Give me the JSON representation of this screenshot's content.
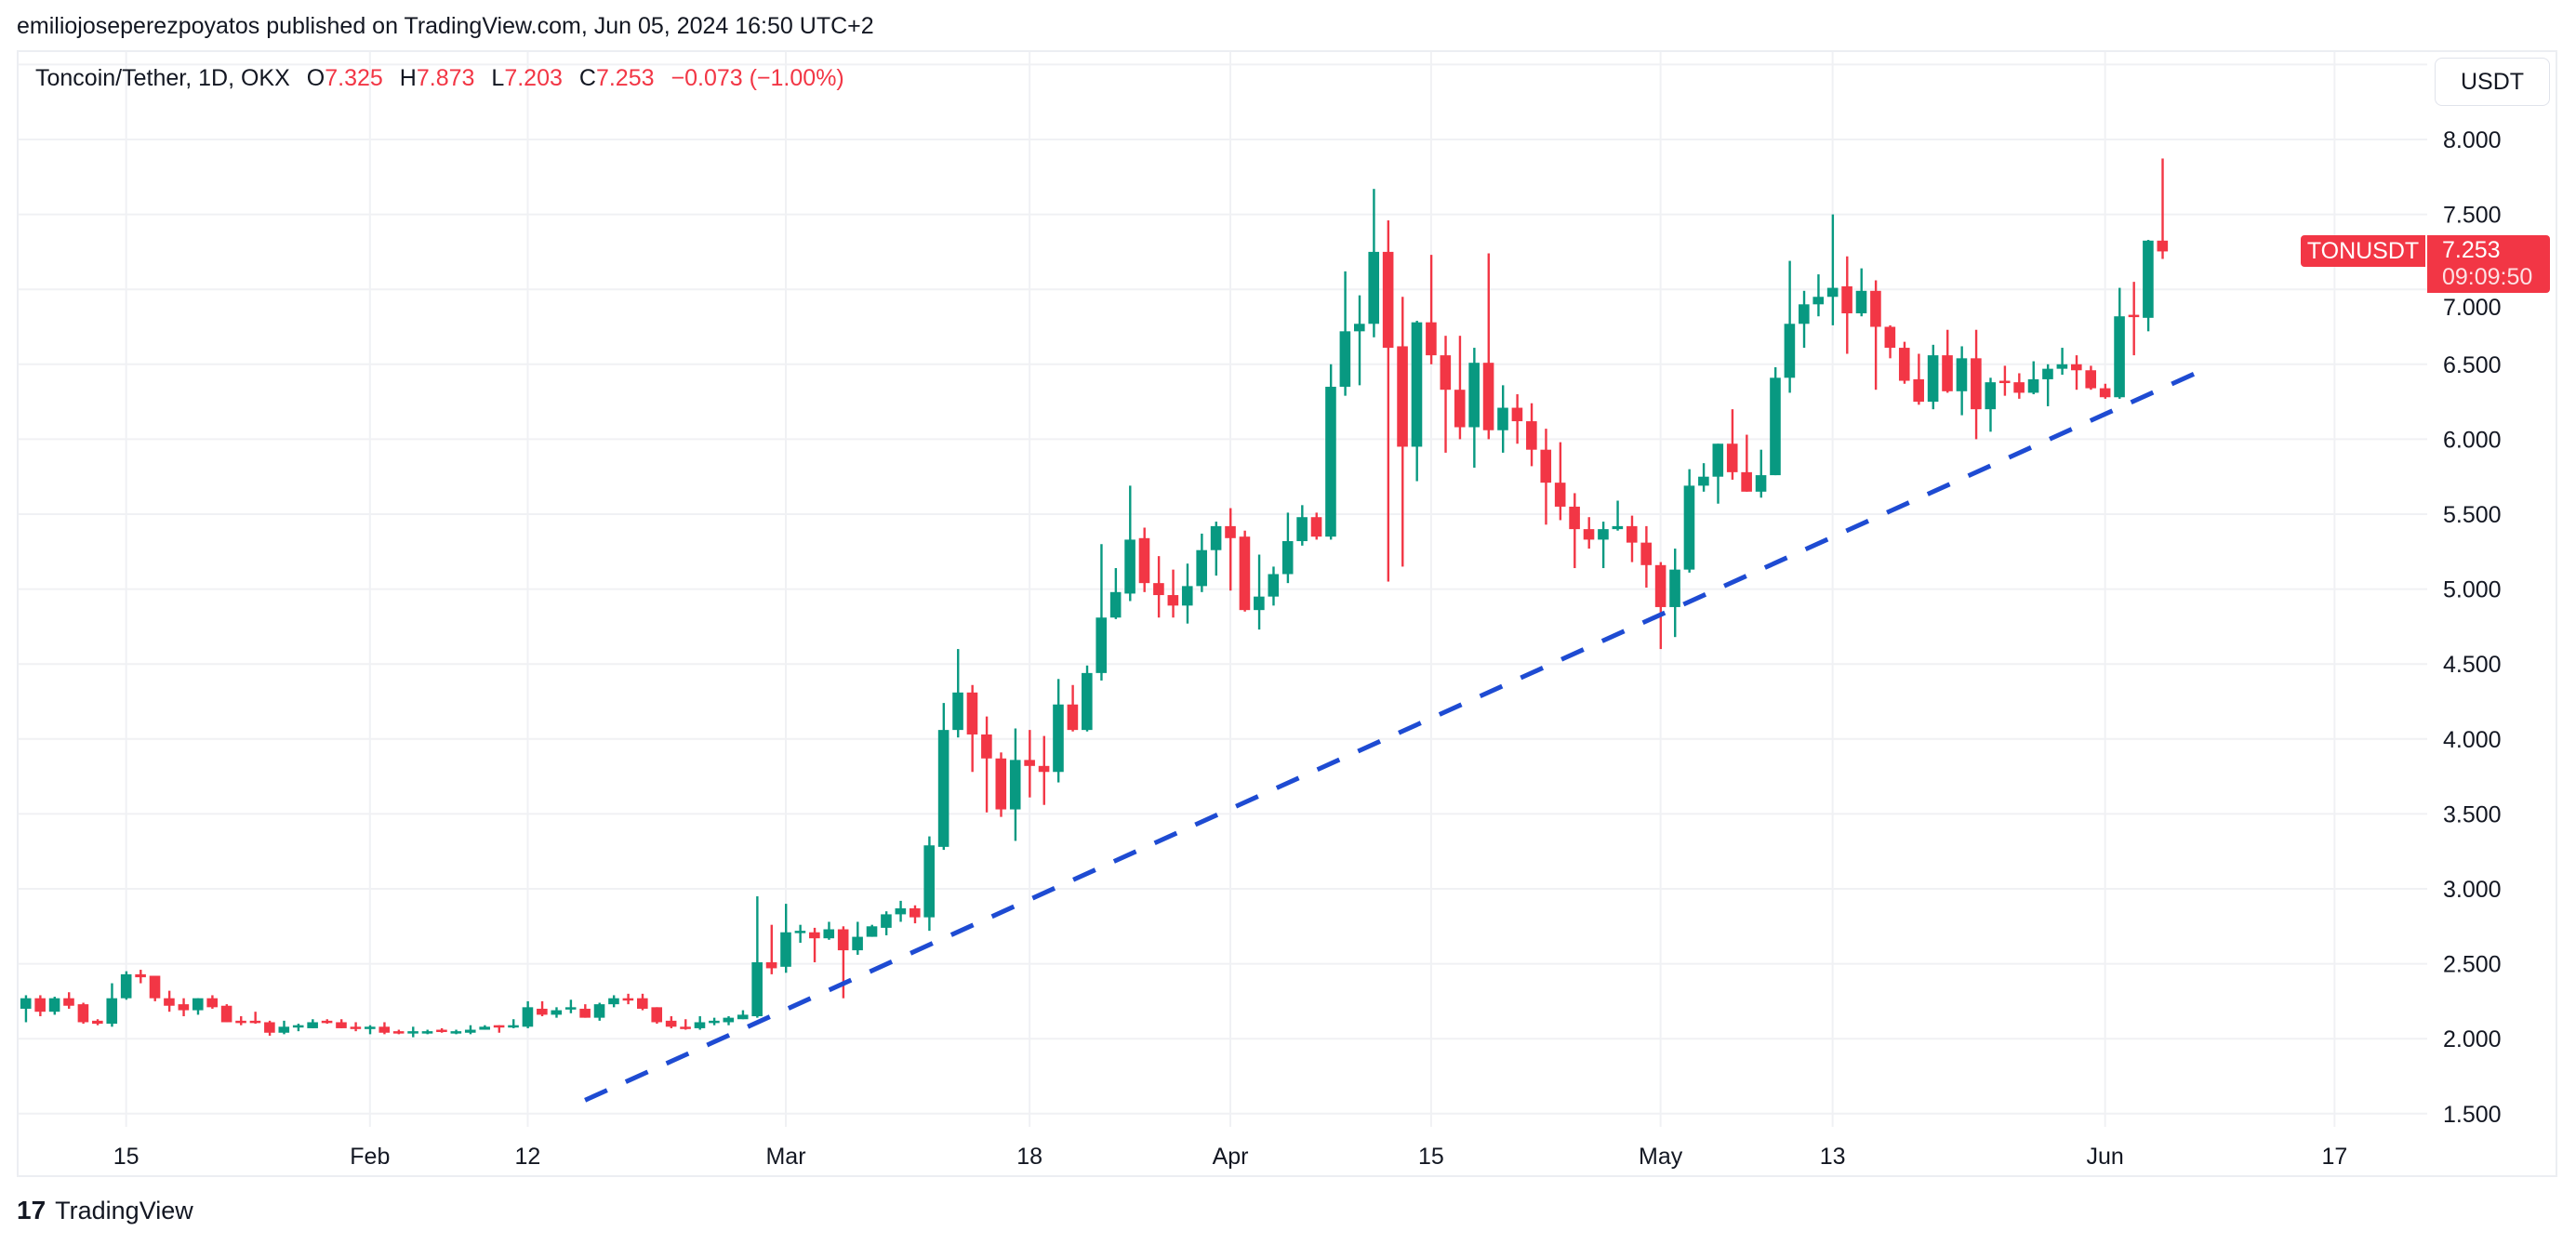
{
  "header": {
    "published": "emiliojoseperezpoyatos published on TradingView.com, Jun 05, 2024 16:50 UTC+2"
  },
  "legend": {
    "symbol": "Toncoin/Tether, 1D, OKX",
    "o_label": "O",
    "o": "7.325",
    "h_label": "H",
    "h": "7.873",
    "l_label": "L",
    "l": "7.203",
    "c_label": "C",
    "c": "7.253",
    "change": "−0.073 (−1.00%)"
  },
  "currency_button": "USDT",
  "last_price": {
    "symbol": "TONUSDT",
    "price": "7.253",
    "countdown": "09:09:50"
  },
  "footer": {
    "brand": "TradingView",
    "logo_text": "17"
  },
  "colors": {
    "up": "#089981",
    "down": "#F23645",
    "trendline": "#1E4BD2",
    "grid": "#f0f1f4"
  },
  "chart_data": {
    "type": "candlestick",
    "title": "Toncoin/Tether, 1D, OKX",
    "first_date": "2024-01-08",
    "ylim": [
      1.35,
      8.6
    ],
    "grid": true,
    "y_ticks": [
      "8.000",
      "7.500",
      "7.000",
      "6.500",
      "6.000",
      "5.500",
      "5.000",
      "4.500",
      "4.000",
      "3.500",
      "3.000",
      "2.500",
      "2.000",
      "1.500"
    ],
    "x_ticks": [
      {
        "label": "15",
        "day_index": 7
      },
      {
        "label": "Feb",
        "day_index": 24
      },
      {
        "label": "12",
        "day_index": 35
      },
      {
        "label": "Mar",
        "day_index": 53
      },
      {
        "label": "18",
        "day_index": 70
      },
      {
        "label": "Apr",
        "day_index": 84
      },
      {
        "label": "15",
        "day_index": 98
      },
      {
        "label": "May",
        "day_index": 114
      },
      {
        "label": "13",
        "day_index": 126
      },
      {
        "label": "Jun",
        "day_index": 145
      },
      {
        "label": "17",
        "day_index": 161
      }
    ],
    "trendline": {
      "style": "dashed",
      "start": {
        "day_index": 39,
        "price": 1.59
      },
      "end": {
        "day_index": 152,
        "price": 6.47
      }
    },
    "ohlc_columns": [
      "open",
      "high",
      "low",
      "close"
    ],
    "ohlc": [
      [
        2.2,
        2.29,
        2.11,
        2.27
      ],
      [
        2.27,
        2.29,
        2.15,
        2.18
      ],
      [
        2.18,
        2.28,
        2.16,
        2.27
      ],
      [
        2.27,
        2.31,
        2.2,
        2.22
      ],
      [
        2.23,
        2.24,
        2.1,
        2.11
      ],
      [
        2.12,
        2.13,
        2.09,
        2.1
      ],
      [
        2.1,
        2.37,
        2.08,
        2.27
      ],
      [
        2.27,
        2.45,
        2.26,
        2.43
      ],
      [
        2.43,
        2.46,
        2.37,
        2.41
      ],
      [
        2.42,
        2.42,
        2.25,
        2.27
      ],
      [
        2.27,
        2.32,
        2.18,
        2.22
      ],
      [
        2.23,
        2.27,
        2.15,
        2.19
      ],
      [
        2.19,
        2.27,
        2.16,
        2.27
      ],
      [
        2.27,
        2.29,
        2.2,
        2.21
      ],
      [
        2.22,
        2.23,
        2.11,
        2.11
      ],
      [
        2.12,
        2.15,
        2.09,
        2.11
      ],
      [
        2.12,
        2.18,
        2.1,
        2.11
      ],
      [
        2.11,
        2.12,
        2.02,
        2.04
      ],
      [
        2.04,
        2.12,
        2.03,
        2.08
      ],
      [
        2.08,
        2.1,
        2.05,
        2.09
      ],
      [
        2.07,
        2.13,
        2.07,
        2.11
      ],
      [
        2.12,
        2.13,
        2.1,
        2.11
      ],
      [
        2.11,
        2.13,
        2.07,
        2.07
      ],
      [
        2.08,
        2.11,
        2.05,
        2.07
      ],
      [
        2.07,
        2.09,
        2.03,
        2.08
      ],
      [
        2.08,
        2.11,
        2.03,
        2.04
      ],
      [
        2.05,
        2.06,
        2.03,
        2.04
      ],
      [
        2.04,
        2.08,
        2.01,
        2.05
      ],
      [
        2.04,
        2.06,
        2.03,
        2.05
      ],
      [
        2.06,
        2.07,
        2.04,
        2.05
      ],
      [
        2.04,
        2.06,
        2.03,
        2.05
      ],
      [
        2.04,
        2.09,
        2.03,
        2.06
      ],
      [
        2.06,
        2.09,
        2.06,
        2.08
      ],
      [
        2.09,
        2.09,
        2.04,
        2.08
      ],
      [
        2.08,
        2.13,
        2.07,
        2.09
      ],
      [
        2.08,
        2.25,
        2.07,
        2.21
      ],
      [
        2.2,
        2.25,
        2.15,
        2.16
      ],
      [
        2.16,
        2.21,
        2.14,
        2.19
      ],
      [
        2.2,
        2.26,
        2.17,
        2.21
      ],
      [
        2.2,
        2.23,
        2.14,
        2.14
      ],
      [
        2.14,
        2.24,
        2.12,
        2.23
      ],
      [
        2.23,
        2.29,
        2.21,
        2.27
      ],
      [
        2.27,
        2.3,
        2.23,
        2.26
      ],
      [
        2.27,
        2.3,
        2.19,
        2.2
      ],
      [
        2.21,
        2.21,
        2.1,
        2.11
      ],
      [
        2.12,
        2.15,
        2.07,
        2.08
      ],
      [
        2.08,
        2.13,
        2.06,
        2.07
      ],
      [
        2.07,
        2.15,
        2.06,
        2.11
      ],
      [
        2.11,
        2.14,
        2.09,
        2.12
      ],
      [
        2.11,
        2.15,
        2.09,
        2.14
      ],
      [
        2.13,
        2.19,
        2.13,
        2.16
      ],
      [
        2.15,
        2.95,
        2.14,
        2.51
      ],
      [
        2.51,
        2.76,
        2.43,
        2.47
      ],
      [
        2.48,
        2.9,
        2.44,
        2.71
      ],
      [
        2.71,
        2.76,
        2.64,
        2.72
      ],
      [
        2.71,
        2.74,
        2.51,
        2.67
      ],
      [
        2.67,
        2.78,
        2.66,
        2.73
      ],
      [
        2.73,
        2.75,
        2.27,
        2.59
      ],
      [
        2.59,
        2.78,
        2.56,
        2.68
      ],
      [
        2.68,
        2.76,
        2.68,
        2.75
      ],
      [
        2.74,
        2.85,
        2.69,
        2.83
      ],
      [
        2.83,
        2.92,
        2.78,
        2.87
      ],
      [
        2.87,
        2.89,
        2.77,
        2.81
      ],
      [
        2.81,
        3.35,
        2.72,
        3.29
      ],
      [
        3.28,
        4.24,
        3.26,
        4.06
      ],
      [
        4.06,
        4.6,
        4.01,
        4.31
      ],
      [
        4.31,
        4.36,
        3.78,
        4.03
      ],
      [
        4.03,
        4.15,
        3.51,
        3.87
      ],
      [
        3.87,
        3.91,
        3.48,
        3.53
      ],
      [
        3.53,
        4.07,
        3.32,
        3.86
      ],
      [
        3.86,
        4.06,
        3.61,
        3.82
      ],
      [
        3.82,
        4.02,
        3.56,
        3.78
      ],
      [
        3.78,
        4.4,
        3.71,
        4.23
      ],
      [
        4.23,
        4.36,
        4.05,
        4.06
      ],
      [
        4.06,
        4.49,
        4.05,
        4.44
      ],
      [
        4.44,
        5.3,
        4.39,
        4.81
      ],
      [
        4.81,
        5.14,
        4.8,
        4.98
      ],
      [
        4.97,
        5.69,
        4.92,
        5.33
      ],
      [
        5.34,
        5.41,
        4.98,
        5.04
      ],
      [
        5.04,
        5.22,
        4.81,
        4.96
      ],
      [
        4.96,
        5.13,
        4.81,
        4.89
      ],
      [
        4.89,
        5.17,
        4.77,
        5.02
      ],
      [
        5.02,
        5.37,
        4.98,
        5.26
      ],
      [
        5.26,
        5.45,
        5.09,
        5.42
      ],
      [
        5.42,
        5.54,
        4.99,
        5.34
      ],
      [
        5.35,
        5.39,
        4.85,
        4.86
      ],
      [
        4.86,
        5.23,
        4.73,
        4.95
      ],
      [
        4.95,
        5.15,
        4.89,
        5.1
      ],
      [
        5.1,
        5.51,
        5.04,
        5.32
      ],
      [
        5.32,
        5.56,
        5.29,
        5.48
      ],
      [
        5.48,
        5.51,
        5.33,
        5.35
      ],
      [
        5.35,
        6.5,
        5.33,
        6.35
      ],
      [
        6.35,
        7.12,
        6.29,
        6.72
      ],
      [
        6.72,
        6.96,
        6.36,
        6.77
      ],
      [
        6.77,
        7.67,
        6.68,
        7.25
      ],
      [
        7.25,
        7.46,
        5.05,
        6.61
      ],
      [
        6.62,
        6.95,
        5.15,
        5.95
      ],
      [
        5.95,
        6.79,
        5.72,
        6.78
      ],
      [
        6.78,
        7.23,
        6.5,
        6.56
      ],
      [
        6.56,
        6.69,
        5.91,
        6.33
      ],
      [
        6.33,
        6.69,
        6.0,
        6.08
      ],
      [
        6.08,
        6.61,
        5.81,
        6.51
      ],
      [
        6.51,
        7.24,
        6.0,
        6.06
      ],
      [
        6.06,
        6.36,
        5.91,
        6.21
      ],
      [
        6.21,
        6.3,
        5.97,
        6.12
      ],
      [
        6.12,
        6.24,
        5.82,
        5.93
      ],
      [
        5.93,
        6.07,
        5.43,
        5.71
      ],
      [
        5.71,
        5.98,
        5.46,
        5.55
      ],
      [
        5.55,
        5.64,
        5.14,
        5.4
      ],
      [
        5.4,
        5.48,
        5.27,
        5.33
      ],
      [
        5.33,
        5.45,
        5.14,
        5.4
      ],
      [
        5.4,
        5.59,
        5.39,
        5.42
      ],
      [
        5.42,
        5.49,
        5.18,
        5.31
      ],
      [
        5.31,
        5.42,
        5.01,
        5.16
      ],
      [
        5.16,
        5.18,
        4.6,
        4.88
      ],
      [
        4.88,
        5.27,
        4.68,
        5.13
      ],
      [
        5.13,
        5.8,
        5.11,
        5.69
      ],
      [
        5.69,
        5.84,
        5.65,
        5.75
      ],
      [
        5.75,
        5.97,
        5.57,
        5.97
      ],
      [
        5.97,
        6.2,
        5.73,
        5.78
      ],
      [
        5.78,
        6.03,
        5.65,
        5.65
      ],
      [
        5.65,
        5.93,
        5.61,
        5.76
      ],
      [
        5.76,
        6.48,
        5.76,
        6.41
      ],
      [
        6.41,
        7.19,
        6.31,
        6.77
      ],
      [
        6.77,
        6.99,
        6.61,
        6.9
      ],
      [
        6.9,
        7.1,
        6.82,
        6.95
      ],
      [
        6.95,
        7.5,
        6.76,
        7.01
      ],
      [
        7.02,
        7.22,
        6.57,
        6.84
      ],
      [
        6.84,
        7.14,
        6.82,
        6.99
      ],
      [
        6.99,
        7.06,
        6.33,
        6.75
      ],
      [
        6.75,
        6.76,
        6.54,
        6.61
      ],
      [
        6.61,
        6.65,
        6.37,
        6.39
      ],
      [
        6.4,
        6.57,
        6.23,
        6.25
      ],
      [
        6.25,
        6.63,
        6.2,
        6.56
      ],
      [
        6.56,
        6.73,
        6.31,
        6.32
      ],
      [
        6.32,
        6.62,
        6.16,
        6.54
      ],
      [
        6.54,
        6.73,
        6.0,
        6.2
      ],
      [
        6.2,
        6.41,
        6.05,
        6.38
      ],
      [
        6.39,
        6.49,
        6.29,
        6.38
      ],
      [
        6.38,
        6.44,
        6.27,
        6.31
      ],
      [
        6.31,
        6.52,
        6.3,
        6.4
      ],
      [
        6.4,
        6.5,
        6.22,
        6.47
      ],
      [
        6.47,
        6.61,
        6.43,
        6.5
      ],
      [
        6.5,
        6.56,
        6.33,
        6.46
      ],
      [
        6.46,
        6.49,
        6.33,
        6.34
      ],
      [
        6.34,
        6.37,
        6.27,
        6.28
      ],
      [
        6.28,
        7.01,
        6.27,
        6.82
      ],
      [
        6.83,
        7.05,
        6.56,
        6.82
      ],
      [
        6.81,
        7.33,
        6.72,
        7.325
      ],
      [
        7.325,
        7.873,
        7.203,
        7.253
      ]
    ]
  }
}
